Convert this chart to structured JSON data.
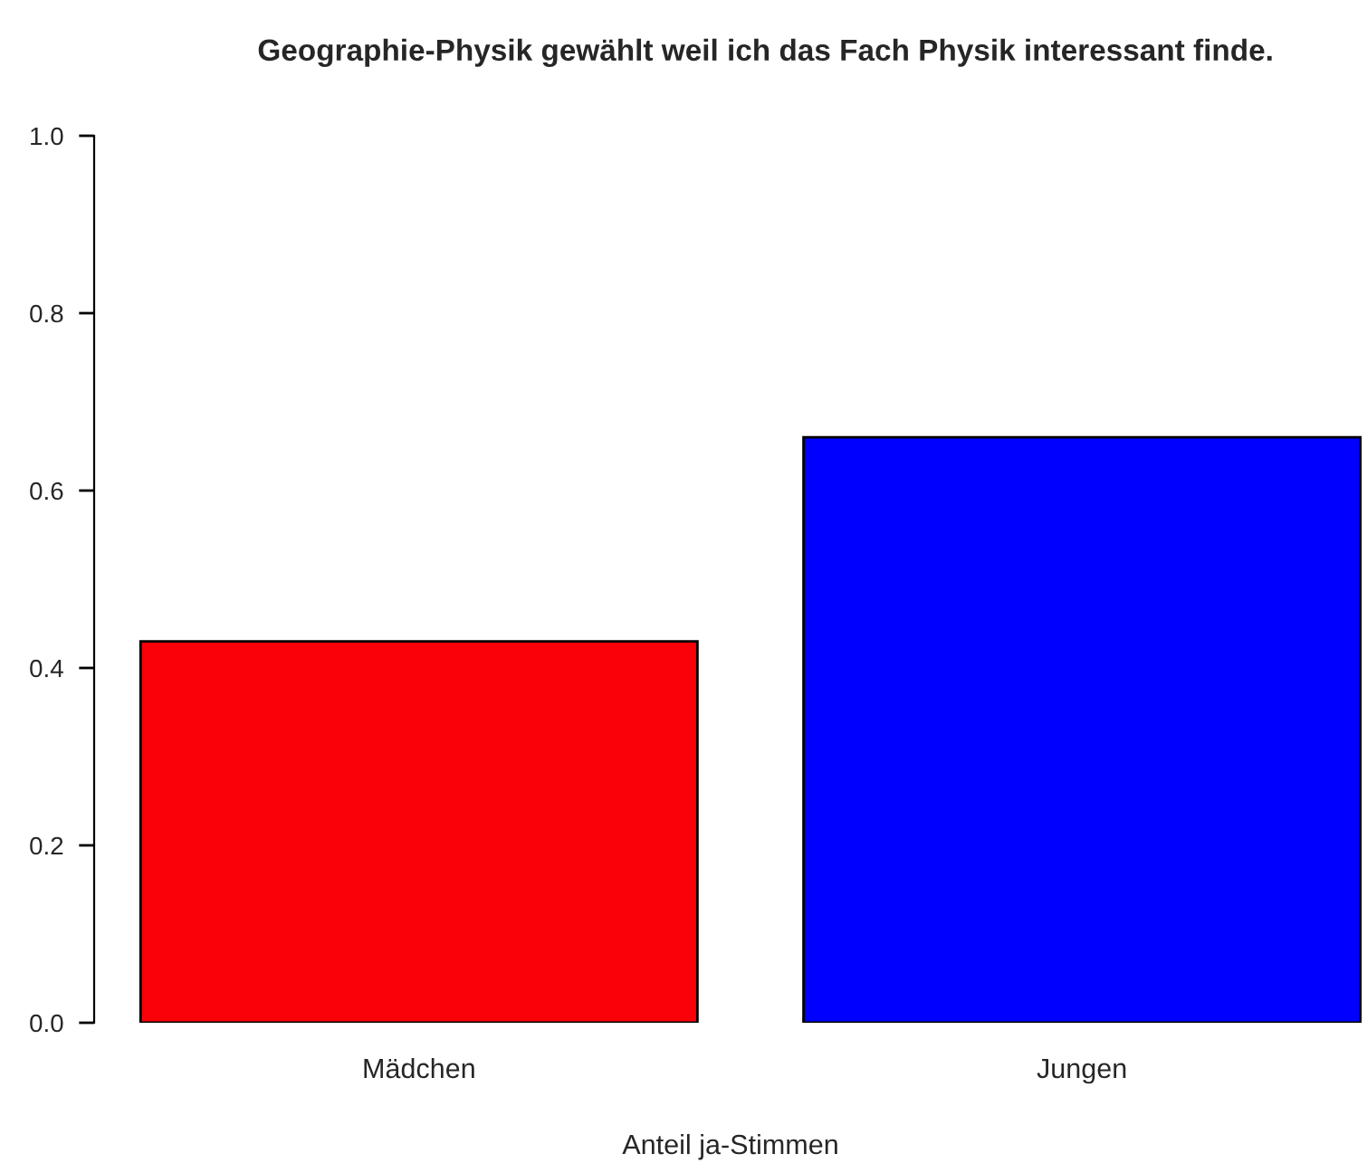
{
  "chart_data": {
    "type": "bar",
    "title": "Geographie-Physik gewählt weil ich das Fach Physik interessant finde.",
    "xlabel": "Anteil ja-Stimmen",
    "categories": [
      "Mädchen",
      "Jungen"
    ],
    "values": [
      0.43,
      0.66
    ],
    "colors": [
      "#fa0008",
      "#0000ff"
    ],
    "ylim": [
      0,
      1
    ],
    "yticks": [
      {
        "value": 0,
        "label": "0.0"
      },
      {
        "value": 0.2,
        "label": "0.2"
      },
      {
        "value": 0.4,
        "label": "0.4"
      },
      {
        "value": 0.6,
        "label": "0.6"
      },
      {
        "value": 0.8,
        "label": "0.8"
      },
      {
        "value": 1,
        "label": "1.0"
      }
    ],
    "grid": false,
    "legend": false
  }
}
